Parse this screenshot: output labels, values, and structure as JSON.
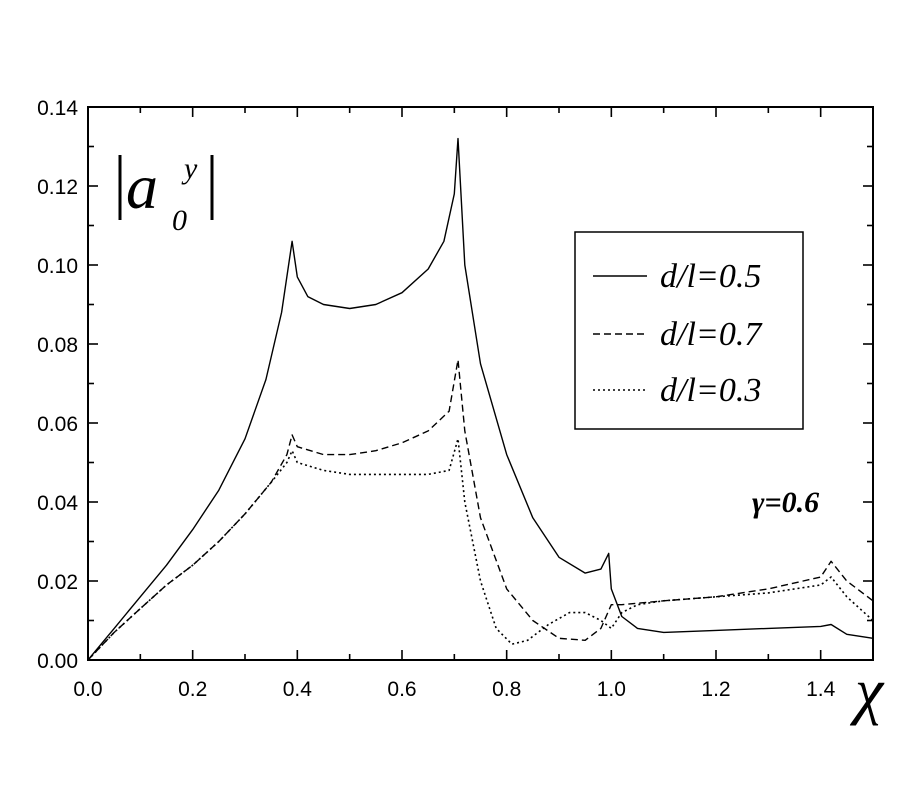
{
  "chart_data": {
    "type": "line",
    "xlabel": "χ",
    "ylabel_main": "a",
    "ylabel_sup": "y",
    "ylabel_sub": "0",
    "annotation": "γ=0.6",
    "xlim": [
      0.0,
      1.5
    ],
    "ylim": [
      0.0,
      0.14
    ],
    "x_ticks": [
      "0.0",
      "0.2",
      "0.4",
      "0.6",
      "0.8",
      "1.0",
      "1.2",
      "1.4"
    ],
    "y_ticks": [
      "0.00",
      "0.02",
      "0.04",
      "0.06",
      "0.08",
      "0.10",
      "0.12",
      "0.14"
    ],
    "grid": false,
    "legend_position": "upper-right",
    "series": [
      {
        "name": "d/l=0.5",
        "style": "solid",
        "x": [
          0,
          0.05,
          0.1,
          0.15,
          0.2,
          0.25,
          0.3,
          0.34,
          0.37,
          0.39,
          0.4,
          0.42,
          0.45,
          0.5,
          0.55,
          0.6,
          0.65,
          0.68,
          0.7,
          0.707,
          0.72,
          0.75,
          0.8,
          0.85,
          0.9,
          0.95,
          0.98,
          0.995,
          1.0,
          1.02,
          1.05,
          1.1,
          1.2,
          1.3,
          1.4,
          1.42,
          1.45,
          1.5
        ],
        "y": [
          0,
          0.008,
          0.016,
          0.024,
          0.033,
          0.043,
          0.056,
          0.071,
          0.088,
          0.106,
          0.097,
          0.092,
          0.09,
          0.089,
          0.09,
          0.093,
          0.099,
          0.106,
          0.118,
          0.132,
          0.1,
          0.075,
          0.052,
          0.036,
          0.026,
          0.022,
          0.023,
          0.027,
          0.018,
          0.011,
          0.008,
          0.007,
          0.0075,
          0.008,
          0.0085,
          0.009,
          0.0065,
          0.0055
        ]
      },
      {
        "name": "d/l=0.7",
        "style": "dashed",
        "x": [
          0,
          0.05,
          0.1,
          0.15,
          0.2,
          0.25,
          0.3,
          0.35,
          0.38,
          0.39,
          0.4,
          0.45,
          0.5,
          0.55,
          0.6,
          0.65,
          0.69,
          0.707,
          0.72,
          0.75,
          0.8,
          0.85,
          0.9,
          0.95,
          0.98,
          1.0,
          1.02,
          1.1,
          1.2,
          1.3,
          1.4,
          1.42,
          1.45,
          1.5
        ],
        "y": [
          0,
          0.007,
          0.013,
          0.019,
          0.024,
          0.03,
          0.037,
          0.045,
          0.052,
          0.057,
          0.054,
          0.052,
          0.052,
          0.053,
          0.055,
          0.058,
          0.063,
          0.076,
          0.058,
          0.036,
          0.018,
          0.01,
          0.0055,
          0.005,
          0.008,
          0.014,
          0.014,
          0.015,
          0.016,
          0.018,
          0.021,
          0.025,
          0.02,
          0.015
        ]
      },
      {
        "name": "d/l=0.3",
        "style": "dotted",
        "x": [
          0,
          0.05,
          0.1,
          0.15,
          0.2,
          0.25,
          0.3,
          0.35,
          0.38,
          0.39,
          0.4,
          0.45,
          0.5,
          0.55,
          0.6,
          0.65,
          0.69,
          0.707,
          0.72,
          0.75,
          0.78,
          0.81,
          0.84,
          0.88,
          0.92,
          0.95,
          0.98,
          1.0,
          1.02,
          1.05,
          1.1,
          1.2,
          1.3,
          1.4,
          1.42,
          1.45,
          1.5
        ],
        "y": [
          0,
          0.007,
          0.013,
          0.019,
          0.024,
          0.03,
          0.037,
          0.045,
          0.05,
          0.053,
          0.05,
          0.048,
          0.047,
          0.047,
          0.047,
          0.047,
          0.048,
          0.056,
          0.04,
          0.02,
          0.008,
          0.004,
          0.005,
          0.009,
          0.012,
          0.012,
          0.01,
          0.008,
          0.012,
          0.014,
          0.015,
          0.016,
          0.017,
          0.019,
          0.021,
          0.016,
          0.01
        ]
      }
    ]
  }
}
